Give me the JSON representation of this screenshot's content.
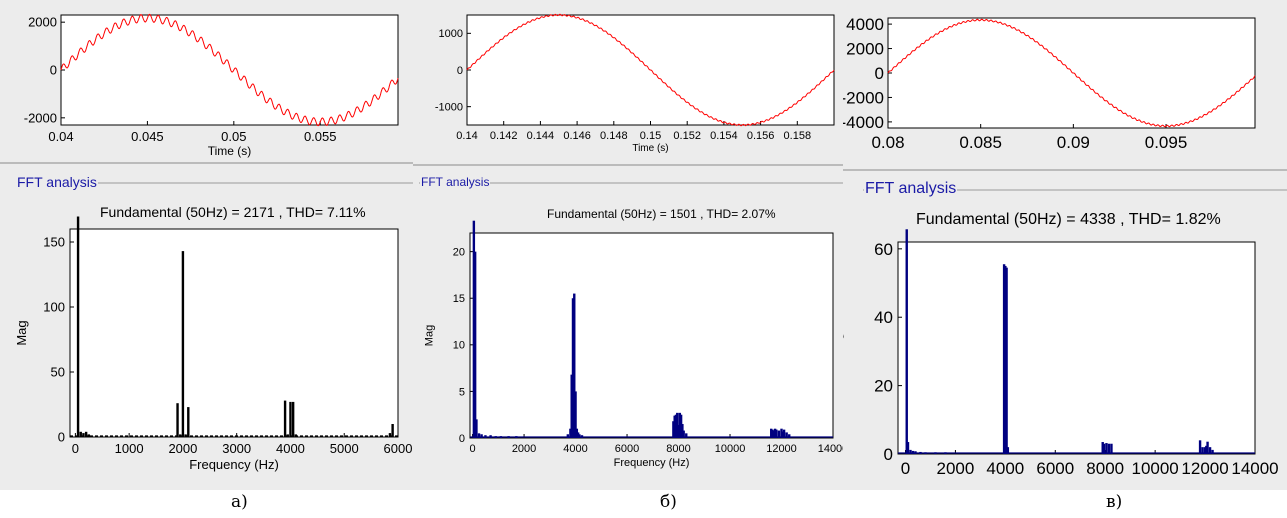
{
  "panels": [
    {
      "id": "a",
      "caption": "а)",
      "fft_title": "FFT analysis",
      "fundamental_text": "Fundamental (50Hz) = 2171 , THD= 7.11%",
      "colors": {
        "signal": "#ff0000",
        "spectrum": "#000000"
      }
    },
    {
      "id": "b",
      "caption": "б)",
      "fft_title": "FFT analysis",
      "fundamental_text": "Fundamental (50Hz) = 1501 , THD= 2.07%",
      "colors": {
        "signal": "#ff0000",
        "spectrum": "#000080"
      }
    },
    {
      "id": "c",
      "caption": "в)",
      "fft_title": "FFT analysis",
      "fundamental_text": "Fundamental (50Hz) = 4338 , THD= 1.82%",
      "colors": {
        "signal": "#ff0000",
        "spectrum": "#000080"
      }
    }
  ],
  "chart_data": [
    {
      "panel": "a",
      "type": "line",
      "xlabel": "Time (s)",
      "ylabel": "",
      "xlim": [
        0.04,
        0.0595
      ],
      "ylim": [
        -2300,
        2300
      ],
      "xticks": [
        "0.04",
        "0.045",
        "0.05",
        "0.055"
      ],
      "yticks": [
        "2000",
        "0",
        "-2000"
      ],
      "series": [
        {
          "amplitude": 2171,
          "frequency_hz": 50,
          "ripple_amplitude": 160,
          "ripple_frequency_hz": 2000
        }
      ]
    },
    {
      "panel": "a",
      "type": "bar",
      "xlabel": "Frequency (Hz)",
      "ylabel": "Mag",
      "xlim": [
        -100,
        6000
      ],
      "ylim": [
        0,
        160
      ],
      "xticks": [
        "0",
        "1000",
        "2000",
        "3000",
        "4000",
        "5000",
        "6000"
      ],
      "yticks": [
        "0",
        "50",
        "100",
        "150"
      ],
      "x": [
        50,
        100,
        150,
        200,
        250,
        1900,
        1950,
        2000,
        2050,
        2100,
        3900,
        3950,
        4000,
        4050,
        4100,
        5850,
        5900
      ],
      "values": [
        185,
        4,
        3,
        4,
        2,
        26,
        2,
        143,
        2,
        23,
        28,
        2,
        27,
        27,
        2,
        3,
        10
      ]
    },
    {
      "panel": "b",
      "type": "line",
      "xlabel": "Time (s)",
      "ylabel": "",
      "xlim": [
        0.14,
        0.16
      ],
      "ylim": [
        -1500,
        1500
      ],
      "xticks": [
        "0.14",
        "0.142",
        "0.144",
        "0.146",
        "0.148",
        "0.15",
        "0.152",
        "0.154",
        "0.156",
        "0.158"
      ],
      "yticks": [
        "1000",
        "0",
        "-1000"
      ],
      "series": [
        {
          "amplitude": 1501,
          "frequency_hz": 50,
          "ripple_amplitude": 18,
          "ripple_frequency_hz": 4000
        }
      ]
    },
    {
      "panel": "b",
      "type": "bar",
      "xlabel": "Frequency (Hz)",
      "ylabel": "Mag",
      "xlim": [
        -100,
        14000
      ],
      "ylim": [
        0,
        22
      ],
      "xticks": [
        "0",
        "2000",
        "4000",
        "6000",
        "8000",
        "10000",
        "12000",
        "14000"
      ],
      "yticks": [
        "0",
        "5",
        "10",
        "15",
        "20"
      ],
      "x": [
        50,
        100,
        150,
        250,
        350,
        500,
        700,
        900,
        1100,
        1400,
        1700,
        3700,
        3800,
        3850,
        3900,
        3950,
        4000,
        4050,
        4100,
        4150,
        4250,
        7800,
        7850,
        7900,
        7950,
        8000,
        8050,
        8100,
        8150,
        8200,
        8300,
        11600,
        11650,
        11700,
        11750,
        11800,
        11900,
        12000,
        12050,
        12100,
        12200,
        12300
      ],
      "values": [
        24,
        20,
        2,
        0.5,
        0.4,
        0.3,
        0.3,
        0.2,
        0.2,
        0.2,
        0.2,
        0.4,
        1,
        6.8,
        15,
        15.5,
        5,
        1,
        0.6,
        0.4,
        0.3,
        1.8,
        2.4,
        2.5,
        2.7,
        1.4,
        2.7,
        2.5,
        1.5,
        0.8,
        0.5,
        1,
        0.9,
        0.8,
        1,
        0.9,
        0.8,
        1,
        0.7,
        0.9,
        0.6,
        0.4
      ]
    },
    {
      "panel": "c",
      "type": "line",
      "xlabel": "",
      "ylabel": "",
      "xlim": [
        0.08,
        0.0998
      ],
      "ylim": [
        -4500,
        4500
      ],
      "xticks": [
        "0.08",
        "0.085",
        "0.09",
        "0.095"
      ],
      "yticks": [
        "4000",
        "2000",
        "0",
        "-2000",
        "-4000"
      ],
      "series": [
        {
          "amplitude": 4338,
          "frequency_hz": 50,
          "ripple_amplitude": 60,
          "ripple_frequency_hz": 4000
        }
      ]
    },
    {
      "panel": "c",
      "type": "bar",
      "xlabel": "",
      "ylabel": "Mag",
      "xlim": [
        -300,
        14000
      ],
      "ylim": [
        0,
        62
      ],
      "xticks": [
        "0",
        "2000",
        "4000",
        "6000",
        "8000",
        "10000",
        "12000",
        "14000"
      ],
      "yticks": [
        "0",
        "20",
        "40",
        "60"
      ],
      "x": [
        50,
        100,
        200,
        300,
        400,
        600,
        800,
        1200,
        1600,
        3950,
        4000,
        4050,
        4100,
        7900,
        7950,
        8050,
        8150,
        8250,
        11800,
        11900,
        12000,
        12050,
        12100,
        12200,
        12300
      ],
      "values": [
        70,
        3.5,
        1.2,
        0.9,
        0.8,
        0.6,
        0.5,
        0.5,
        0.5,
        55.5,
        55,
        54.5,
        2,
        3.5,
        3,
        3.2,
        3,
        3,
        4,
        2,
        2,
        2.4,
        3.6,
        2,
        1.2
      ]
    }
  ]
}
